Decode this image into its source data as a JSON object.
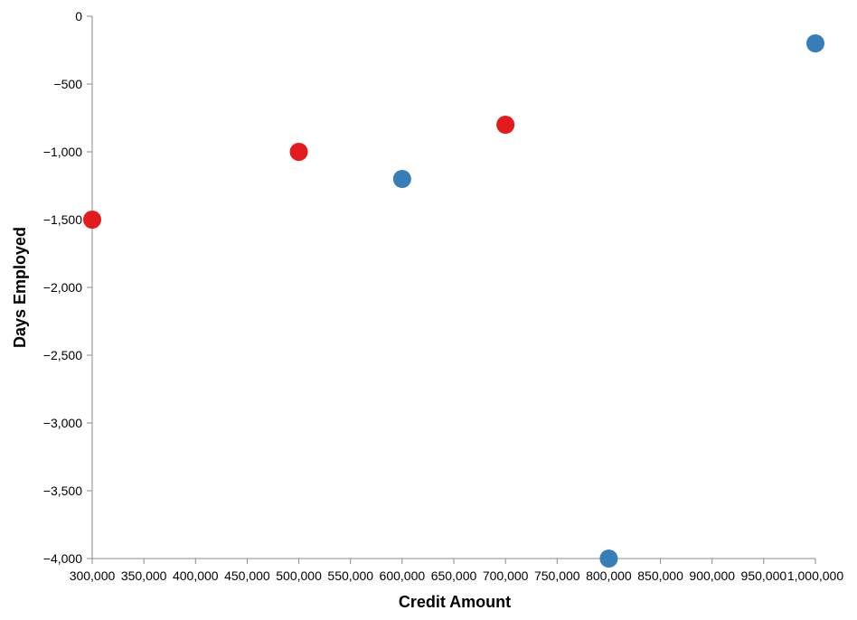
{
  "chart_data": {
    "type": "scatter",
    "xlabel": "Credit Amount",
    "ylabel": "Days Employed",
    "xlim": [
      300000,
      1000000
    ],
    "ylim": [
      -4000,
      0
    ],
    "xticks": [
      300000,
      350000,
      400000,
      450000,
      500000,
      550000,
      600000,
      650000,
      700000,
      750000,
      800000,
      850000,
      900000,
      950000,
      1000000
    ],
    "xtick_labels": [
      "300,000",
      "350,000",
      "400,000",
      "450,000",
      "500,000",
      "550,000",
      "600,000",
      "650,000",
      "700,000",
      "750,000",
      "800,000",
      "850,000",
      "900,000",
      "950,000",
      "1,000,000"
    ],
    "yticks": [
      0,
      -500,
      -1000,
      -1500,
      -2000,
      -2500,
      -3000,
      -3500,
      -4000
    ],
    "ytick_labels": [
      "0",
      "−500",
      "−1,000",
      "−1,500",
      "−2,000",
      "−2,500",
      "−3,000",
      "−3,500",
      "−4,000"
    ],
    "grid": false,
    "legend": "none",
    "colors": {
      "red": "#e41a1c",
      "blue": "#377eb8"
    },
    "points": [
      {
        "x": 300000,
        "y": -1500,
        "color": "#e41a1c"
      },
      {
        "x": 500000,
        "y": -1000,
        "color": "#e41a1c"
      },
      {
        "x": 600000,
        "y": -1200,
        "color": "#377eb8"
      },
      {
        "x": 700000,
        "y": -800,
        "color": "#e41a1c"
      },
      {
        "x": 800000,
        "y": -4000,
        "color": "#377eb8"
      },
      {
        "x": 1000000,
        "y": -200,
        "color": "#377eb8"
      }
    ]
  }
}
